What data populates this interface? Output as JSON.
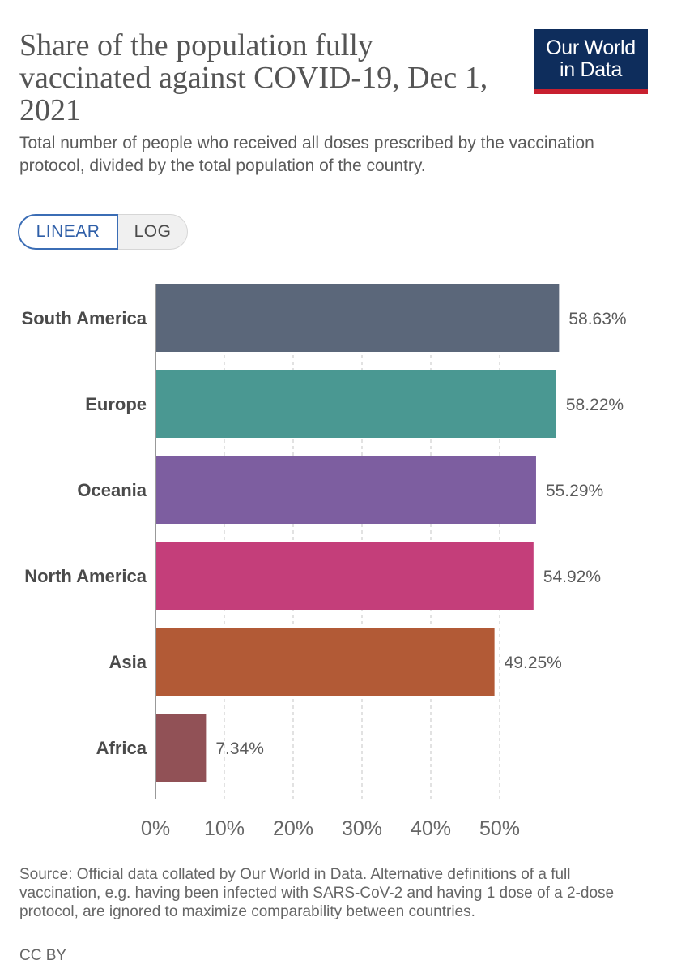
{
  "header": {
    "title": "Share of the population fully vaccinated against COVID-19, Dec 1, 2021",
    "subtitle": "Total number of people who received all doses prescribed by the vaccination protocol, divided by the total population of the country.",
    "logo_line1": "Our World",
    "logo_line2": "in Data"
  },
  "scale_toggle": {
    "linear_label": "LINEAR",
    "log_label": "LOG",
    "selected": "LINEAR"
  },
  "chart_data": {
    "type": "bar",
    "orientation": "horizontal",
    "categories": [
      "South America",
      "Europe",
      "Oceania",
      "North America",
      "Asia",
      "Africa"
    ],
    "values": [
      58.63,
      58.22,
      55.29,
      54.92,
      49.25,
      7.34
    ],
    "value_labels": [
      "58.63%",
      "58.22%",
      "55.29%",
      "54.92%",
      "49.25%",
      "7.34%"
    ],
    "colors": [
      "#5b677a",
      "#4a9892",
      "#7d5ea0",
      "#c43e7a",
      "#b25a36",
      "#915156"
    ],
    "x_ticks": [
      0,
      10,
      20,
      30,
      40,
      50
    ],
    "x_tick_labels": [
      "0%",
      "10%",
      "20%",
      "30%",
      "40%",
      "50%"
    ],
    "xlim": [
      0,
      60
    ],
    "grid": "vertical dashed",
    "legend": "none"
  },
  "footer": {
    "source": "Source: Official data collated by Our World in Data. Alternative definitions of a full vaccination, e.g. having been infected with SARS-CoV-2 and having 1 dose of a 2-dose protocol, are ignored to maximize comparability between countries.",
    "license": "CC BY"
  }
}
